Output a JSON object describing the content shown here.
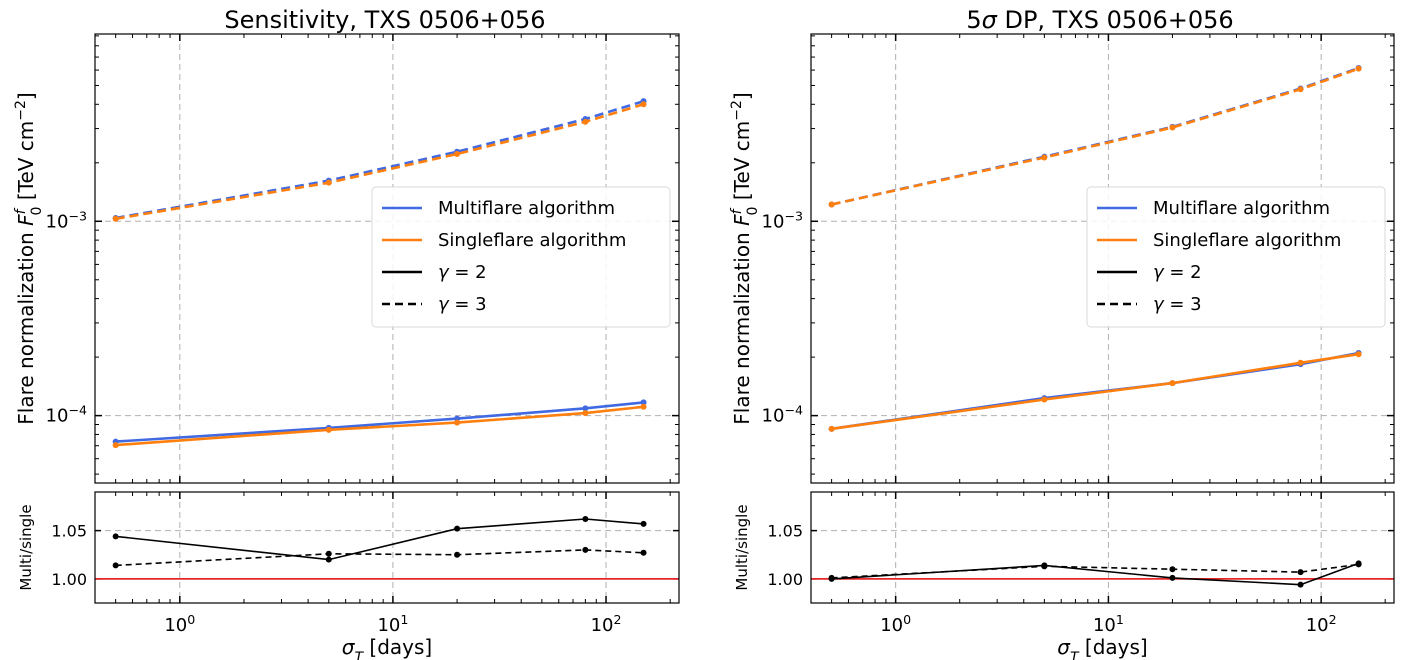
{
  "chart_data": [
    {
      "type": "line",
      "title": "Sensitivity, TXS 0506+056",
      "ylabel": "Flare normalization F_0^f [TeV cm^-2]",
      "xlabel": "σ_T [days]",
      "xscale": "log",
      "yscale": "log",
      "xlim": [
        0.4,
        220
      ],
      "ylim": [
        4.5e-05,
        0.0092
      ],
      "x_ticks": [
        "10^0",
        "10^1",
        "10^2"
      ],
      "y_ticks": [
        "10^-4",
        "10^-3"
      ],
      "grid": true,
      "legend_position": "center-right",
      "legend": [
        "Multiflare algorithm",
        "Singleflare algorithm",
        "γ = 2",
        "γ = 3"
      ],
      "x": [
        0.5,
        5,
        20,
        80,
        150
      ],
      "series": [
        {
          "name": "Multiflare algorithm",
          "gamma": "γ = 2",
          "color": "#4169e1",
          "dash": "solid",
          "values": [
            7.35e-05,
            8.65e-05,
            9.65e-05,
            0.000109,
            0.000117
          ]
        },
        {
          "name": "Singleflare algorithm",
          "gamma": "γ = 2",
          "color": "#ff7f0e",
          "dash": "solid",
          "values": [
            7.05e-05,
            8.45e-05,
            9.2e-05,
            0.000103,
            0.000111
          ]
        },
        {
          "name": "Multiflare algorithm",
          "gamma": "γ = 3",
          "color": "#4169e1",
          "dash": "dashed",
          "values": [
            0.00104,
            0.00162,
            0.00228,
            0.00336,
            0.00415
          ]
        },
        {
          "name": "Singleflare algorithm",
          "gamma": "γ = 3",
          "color": "#ff7f0e",
          "dash": "dashed",
          "values": [
            0.00103,
            0.00158,
            0.00222,
            0.00325,
            0.004
          ]
        }
      ],
      "ratio_panel": {
        "ylabel": "Multi/single",
        "ylim": [
          0.975,
          1.09
        ],
        "y_ticks": [
          "1.00",
          "1.05"
        ],
        "reference_line": {
          "value": 1.0,
          "color": "#e8262a"
        },
        "series": [
          {
            "gamma": "γ = 2",
            "dash": "solid",
            "values": [
              1.044,
              1.02,
              1.052,
              1.062,
              1.057
            ]
          },
          {
            "gamma": "γ = 3",
            "dash": "dashed",
            "values": [
              1.014,
              1.026,
              1.025,
              1.03,
              1.027
            ]
          }
        ]
      }
    },
    {
      "type": "line",
      "title": "5σ DP, TXS 0506+056",
      "ylabel": "Flare normalization F_0^f [TeV cm^-2]",
      "xlabel": "σ_T [days]",
      "xscale": "log",
      "yscale": "log",
      "xlim": [
        0.4,
        220
      ],
      "ylim": [
        4.5e-05,
        0.0092
      ],
      "x_ticks": [
        "10^0",
        "10^1",
        "10^2"
      ],
      "y_ticks": [
        "10^-4",
        "10^-3"
      ],
      "grid": true,
      "legend_position": "center-right",
      "legend": [
        "Multiflare algorithm",
        "Singleflare algorithm",
        "γ = 2",
        "γ = 3"
      ],
      "x": [
        0.5,
        5,
        20,
        80,
        150
      ],
      "series": [
        {
          "name": "Multiflare algorithm",
          "gamma": "γ = 2",
          "color": "#4169e1",
          "dash": "solid",
          "values": [
            8.55e-05,
            0.000123,
            0.000147,
            0.000184,
            0.00021
          ]
        },
        {
          "name": "Singleflare algorithm",
          "gamma": "γ = 2",
          "color": "#ff7f0e",
          "dash": "solid",
          "values": [
            8.55e-05,
            0.000121,
            0.000147,
            0.000187,
            0.000207
          ]
        },
        {
          "name": "Multiflare algorithm",
          "gamma": "γ = 3",
          "color": "#4169e1",
          "dash": "dashed",
          "values": [
            0.00122,
            0.00215,
            0.00306,
            0.00482,
            0.00615
          ]
        },
        {
          "name": "Singleflare algorithm",
          "gamma": "γ = 3",
          "color": "#ff7f0e",
          "dash": "dashed",
          "values": [
            0.00122,
            0.00213,
            0.00304,
            0.00478,
            0.0061
          ]
        }
      ],
      "ratio_panel": {
        "ylabel": "Multi/single",
        "ylim": [
          0.975,
          1.09
        ],
        "y_ticks": [
          "1.00",
          "1.05"
        ],
        "reference_line": {
          "value": 1.0,
          "color": "#e8262a"
        },
        "series": [
          {
            "gamma": "γ = 2",
            "dash": "solid",
            "values": [
              1.0,
              1.014,
              1.001,
              0.994,
              1.016
            ]
          },
          {
            "gamma": "γ = 3",
            "dash": "dashed",
            "values": [
              1.001,
              1.013,
              1.01,
              1.007,
              1.015
            ]
          }
        ]
      }
    }
  ]
}
